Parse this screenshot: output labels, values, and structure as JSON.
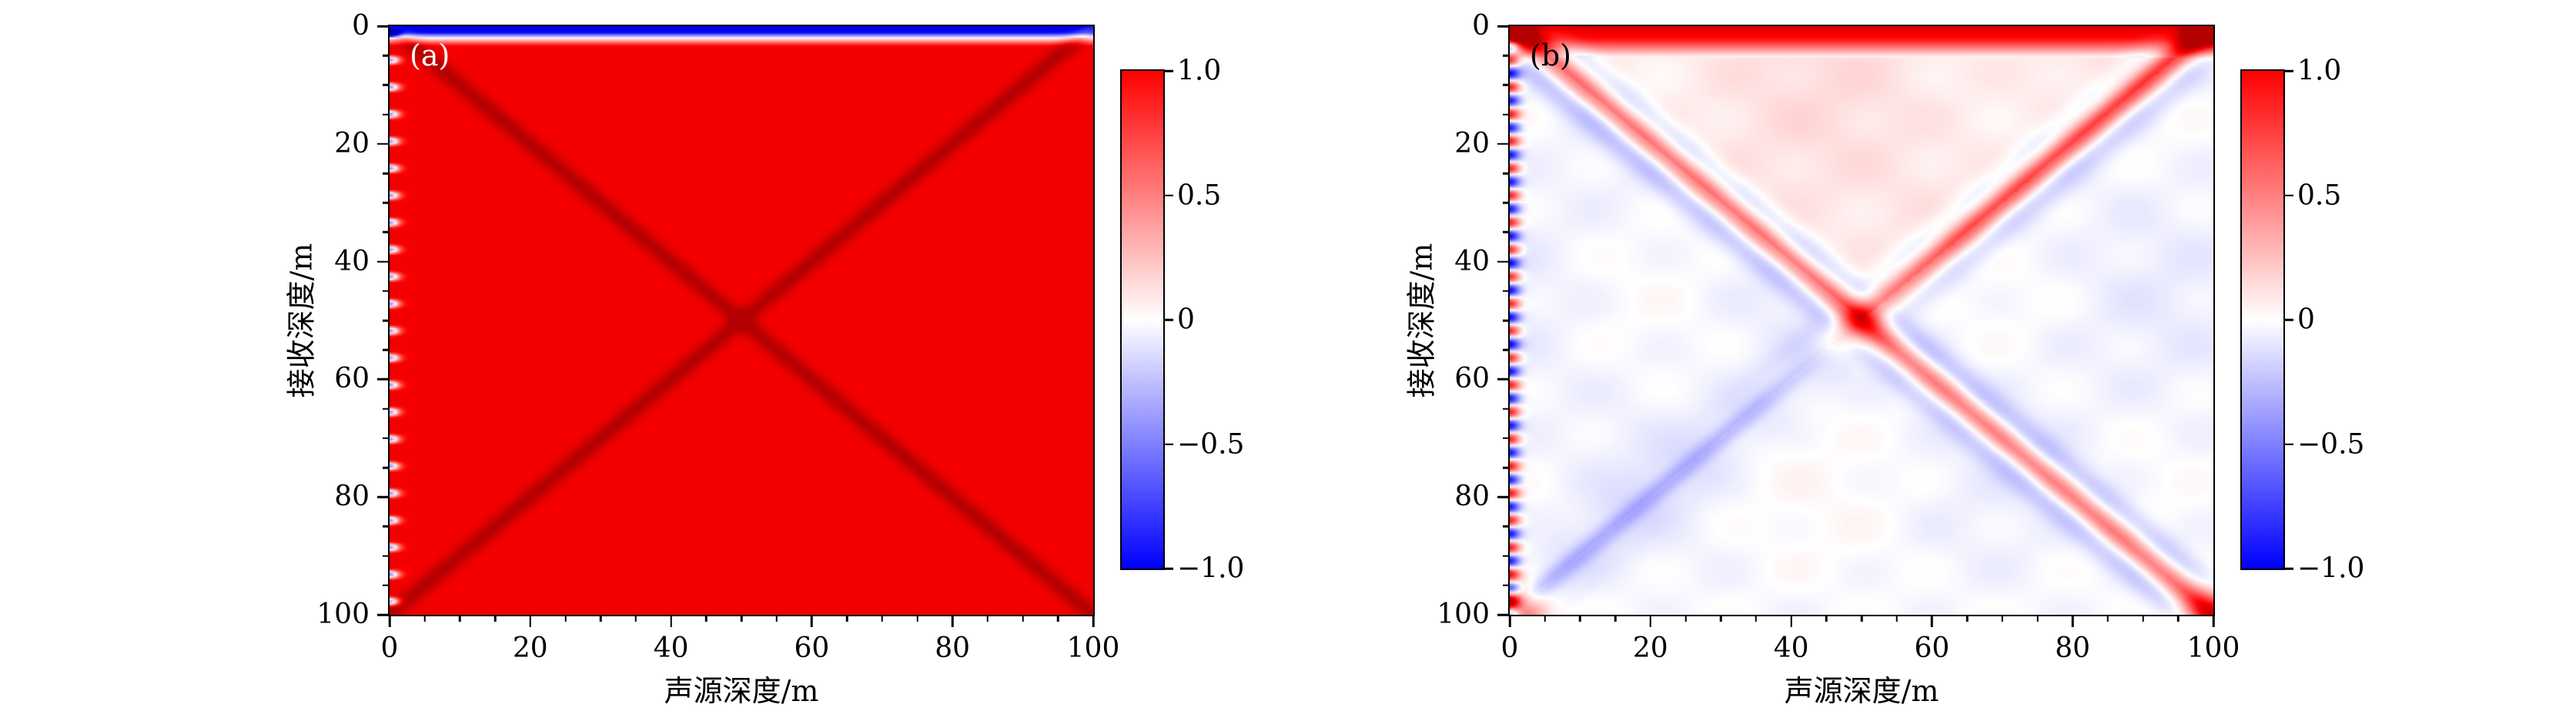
{
  "figure": {
    "background": "#ffffff",
    "axis_color": "#000000"
  },
  "chart_data": [
    {
      "type": "heatmap",
      "panel_label": "(a)",
      "panel_label_color": "#ffffff",
      "xlabel": "声源深度/m",
      "ylabel": "接收深度/m",
      "x_range": [
        0,
        100
      ],
      "y_range": [
        0,
        100
      ],
      "y_inverted": true,
      "x_ticks": {
        "values": [
          0,
          20,
          40,
          60,
          80,
          100
        ],
        "labels": [
          "0",
          "20",
          "40",
          "60",
          "80",
          "100"
        ],
        "minor_step": 5
      },
      "y_ticks": {
        "values": [
          0,
          20,
          40,
          60,
          80,
          100
        ],
        "labels": [
          "0",
          "20",
          "40",
          "60",
          "80",
          "100"
        ],
        "minor_step": 5
      },
      "colorbar": {
        "vmin": -1,
        "vmax": 1,
        "tick_values": [
          1,
          0.5,
          0,
          -0.5,
          -1
        ],
        "tick_labels": [
          "1.0",
          "0.5",
          "0",
          "−0.5",
          "−1.0"
        ],
        "colors": [
          "#0000ff",
          "#ffffff",
          "#ff0000"
        ]
      },
      "field": {
        "features": [
          {
            "type": "background",
            "value": 1.05
          },
          {
            "type": "yband",
            "stops": [
              [
                0,
                -1.25
              ],
              [
                1.1,
                -0.95
              ],
              [
                2.1,
                0.1
              ],
              [
                3.4,
                1.05
              ]
            ]
          },
          {
            "type": "diag",
            "dir": "main",
            "amp": 0.3,
            "width": 1.4
          },
          {
            "type": "diag",
            "dir": "anti",
            "amp": 0.3,
            "width": 1.4
          },
          {
            "type": "edge_osc",
            "edge": "left",
            "amp": -1.5,
            "period": 4.6,
            "decay": 1.0,
            "rectify": true
          }
        ]
      }
    },
    {
      "type": "heatmap",
      "panel_label": "(b)",
      "panel_label_color": "#000000",
      "xlabel": "声源深度/m",
      "ylabel": "接收深度/m",
      "x_range": [
        0,
        100
      ],
      "y_range": [
        0,
        100
      ],
      "y_inverted": true,
      "x_ticks": {
        "values": [
          0,
          20,
          40,
          60,
          80,
          100
        ],
        "labels": [
          "0",
          "20",
          "40",
          "60",
          "80",
          "100"
        ],
        "minor_step": 5
      },
      "y_ticks": {
        "values": [
          0,
          20,
          40,
          60,
          80,
          100
        ],
        "labels": [
          "0",
          "20",
          "40",
          "60",
          "80",
          "100"
        ],
        "minor_step": 5
      },
      "colorbar": {
        "vmin": -1,
        "vmax": 1,
        "tick_values": [
          1,
          0.5,
          0,
          -0.5,
          -1
        ],
        "tick_labels": [
          "1.0",
          "0.5",
          "0",
          "−0.5",
          "−1.0"
        ],
        "colors": [
          "#0000ff",
          "#ffffff",
          "#ff0000"
        ]
      },
      "field": {
        "features": [
          {
            "type": "background",
            "value": 0.01
          },
          {
            "type": "noise",
            "amp": 0.04
          },
          {
            "type": "wedge",
            "region": "top",
            "amp": 0.09
          },
          {
            "type": "wedge",
            "region": "left",
            "amp": -0.05
          },
          {
            "type": "wedge",
            "region": "right",
            "amp": -0.05
          },
          {
            "type": "wedge",
            "region": "bottom",
            "amp": -0.03
          },
          {
            "type": "yband",
            "stops": [
              [
                0,
                1.2
              ],
              [
                2.2,
                0.95
              ],
              [
                5.2,
                0.05
              ]
            ]
          },
          {
            "type": "diag",
            "dir": "main",
            "amp": 0.5,
            "width": 1.8,
            "lobe_amp": -0.18,
            "lobe_dist": 4.8,
            "lobe_width": 2.0
          },
          {
            "type": "diag",
            "dir": "anti",
            "amp": 0.68,
            "width": 1.8,
            "amp_lower": -0.3,
            "ty": 50,
            "tw": 5,
            "lobe_amp": -0.14,
            "lobe_dist": 5,
            "lobe_width": 2.2
          },
          {
            "type": "blob",
            "x": 50,
            "y": 50,
            "amp": 0.6,
            "sigma": 3.2
          },
          {
            "type": "blob",
            "x": 0,
            "y": 0,
            "amp": 0.5,
            "sigma": 3
          },
          {
            "type": "blob",
            "x": 100,
            "y": 0,
            "amp": 0.7,
            "sigma": 3.2
          },
          {
            "type": "blob",
            "x": 0,
            "y": 100,
            "amp": 1.0,
            "sigma": 3.2
          },
          {
            "type": "blob",
            "x": 100,
            "y": 100,
            "amp": 0.85,
            "sigma": 3.2
          },
          {
            "type": "edge_osc",
            "edge": "left",
            "amp": 0.9,
            "period": 4.6,
            "decay": 1.0
          }
        ]
      }
    }
  ]
}
